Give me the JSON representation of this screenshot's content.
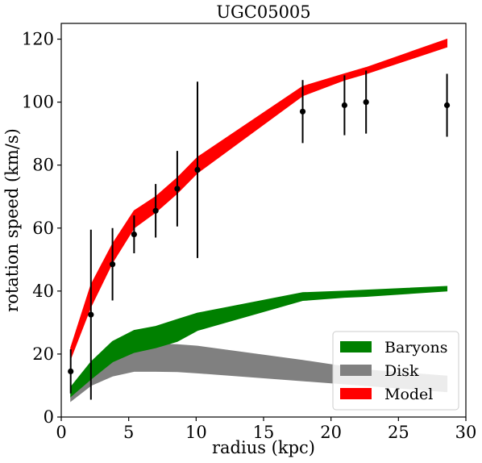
{
  "chart_data": {
    "type": "line",
    "title": "UGC05005",
    "xlabel": "radius (kpc)",
    "ylabel": "rotation speed (km/s)",
    "xlim": [
      0,
      30
    ],
    "ylim": [
      0,
      125
    ],
    "xticks": [
      0,
      5,
      10,
      15,
      20,
      25,
      30
    ],
    "yticks": [
      0,
      20,
      40,
      60,
      80,
      100,
      120
    ],
    "grid": false,
    "legend_position": "lower-right",
    "legend": [
      {
        "label": "Baryons",
        "color": "#008000"
      },
      {
        "label": "Disk",
        "color": "#808080"
      },
      {
        "label": "Model",
        "color": "#ff0000"
      }
    ],
    "bands": [
      {
        "name": "Disk",
        "color": "#808080",
        "x": [
          0.7,
          2.2,
          3.8,
          5.4,
          7.0,
          8.6,
          10.1,
          17.9,
          21.0,
          22.6,
          28.6
        ],
        "upper": [
          6.5,
          15.0,
          20.5,
          23.0,
          23.2,
          23.0,
          22.5,
          18.0,
          16.0,
          15.0,
          13.0
        ],
        "lower": [
          5.0,
          10.0,
          13.0,
          14.5,
          14.5,
          14.4,
          14.0,
          11.5,
          10.5,
          10.0,
          8.0
        ]
      },
      {
        "name": "Baryons",
        "color": "#008000",
        "x": [
          0.7,
          2.2,
          3.8,
          5.4,
          7.0,
          8.6,
          10.1,
          17.9,
          21.0,
          22.6,
          28.6
        ],
        "upper": [
          9.5,
          17.5,
          24.0,
          27.5,
          28.8,
          31.0,
          33.0,
          39.5,
          40.0,
          40.3,
          41.5
        ],
        "lower": [
          6.5,
          12.0,
          17.5,
          20.5,
          22.0,
          24.0,
          27.5,
          37.0,
          38.0,
          38.3,
          40.0
        ]
      },
      {
        "name": "Model",
        "color": "#ff0000",
        "x": [
          0.7,
          2.2,
          3.8,
          5.4,
          7.0,
          8.6,
          10.1,
          17.9,
          21.0,
          22.6,
          28.6
        ],
        "upper": [
          22.0,
          42.0,
          55.0,
          65.5,
          70.0,
          76.0,
          82.5,
          105.0,
          109.0,
          111.0,
          120.0
        ],
        "lower": [
          18.5,
          35.0,
          49.0,
          60.0,
          65.0,
          71.0,
          77.5,
          102.0,
          107.0,
          109.0,
          117.5
        ]
      }
    ],
    "observations": {
      "x": [
        0.7,
        2.2,
        3.8,
        5.4,
        7.0,
        8.6,
        10.1,
        17.9,
        21.0,
        22.6,
        28.6
      ],
      "y": [
        14.5,
        32.5,
        48.5,
        58.0,
        65.5,
        72.5,
        78.5,
        97.0,
        99.0,
        100.0,
        99.0
      ],
      "error": [
        7.0,
        27.0,
        11.5,
        6.0,
        8.5,
        12.0,
        28.0,
        10.0,
        9.5,
        10.0,
        10.0
      ]
    }
  }
}
